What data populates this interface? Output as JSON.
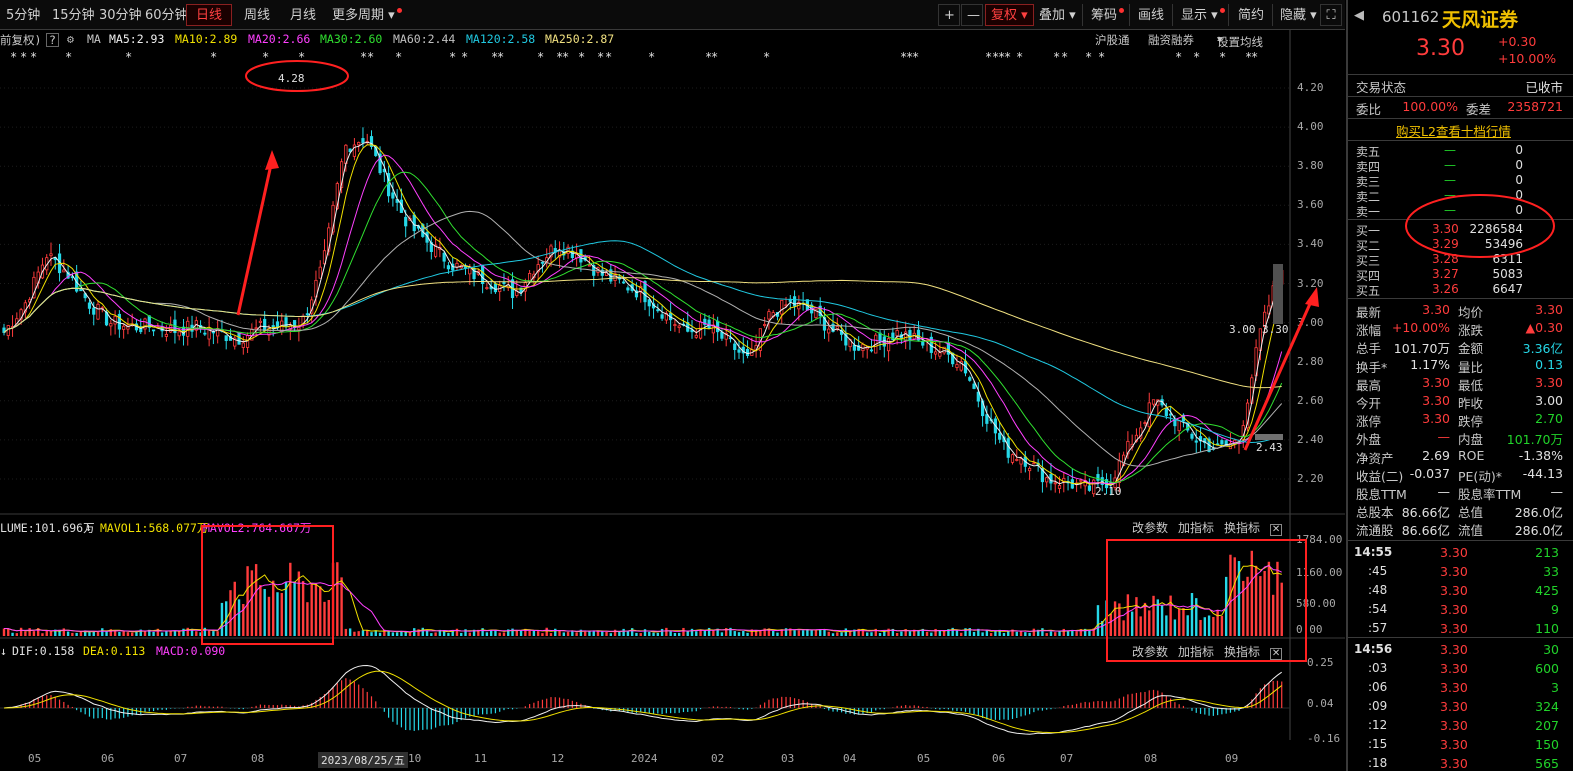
{
  "toolbar": {
    "left": [
      "5分钟",
      "15分钟",
      "30分钟",
      "60分钟",
      "日线",
      "周线",
      "月线",
      "更多周期"
    ],
    "selected": "日线",
    "right": [
      "+",
      "—",
      "复权",
      "叠加",
      "筹码",
      "画线",
      "显示",
      "简约",
      "隐藏",
      "⛶"
    ]
  },
  "ma": {
    "prefix": "前复权)",
    "ma_label": "MA",
    "ma5": "MA5:2.93",
    "ma10": "MA10:2.89",
    "ma20": "MA20:2.66",
    "ma30": "MA30:2.60",
    "ma60": "MA60:2.44",
    "ma120": "MA120:2.58",
    "ma250": "MA250:2.87",
    "links": [
      "沪股通",
      "融资融券",
      "设置均线"
    ]
  },
  "price_axis": [
    "4.20",
    "4.00",
    "3.80",
    "3.60",
    "3.40",
    "3.20",
    "3.00",
    "2.80",
    "2.60",
    "2.40",
    "2.20"
  ],
  "annotations": {
    "high": "4.28",
    "low": "2.10",
    "right_top": "3.00",
    "right_top2": "3.30",
    "right_low": "2.43"
  },
  "volume": {
    "title": "LUME:101.696万",
    "mavol1": "MAVOL1:568.077万",
    "mavol2": "MAVOL2:764.667万",
    "axis": [
      "1784.00",
      "1160.00",
      "580.00",
      "0.00"
    ],
    "btns": [
      "改参数",
      "加指标",
      "换指标"
    ]
  },
  "macd": {
    "dif": "DIF:0.158",
    "dea": "DEA:0.113",
    "macd": "MACD:0.090",
    "axis": [
      "0.25",
      "0.04",
      "-0.16"
    ],
    "btns": [
      "改参数",
      "加指标",
      "换指标"
    ]
  },
  "xaxis": [
    "05",
    "06",
    "07",
    "08",
    "2023/08/25/五",
    "10",
    "11",
    "12",
    "2024",
    "02",
    "03",
    "04",
    "05",
    "06",
    "07",
    "08",
    "09"
  ],
  "quote": {
    "code": "601162",
    "name": "天风证券",
    "price": "3.30",
    "change": "+0.30",
    "pct": "+10.00%",
    "status_label": "交易状态",
    "status": "已收市",
    "weibi_label": "委比",
    "weibi": "100.00%",
    "weicha_label": "委差",
    "weicha": "2358721",
    "l2": "购买L2查看十档行情"
  },
  "asks": [
    {
      "label": "卖五",
      "price": "—",
      "vol": "0"
    },
    {
      "label": "卖四",
      "price": "—",
      "vol": "0"
    },
    {
      "label": "卖三",
      "price": "—",
      "vol": "0"
    },
    {
      "label": "卖二",
      "price": "—",
      "vol": "0"
    },
    {
      "label": "卖一",
      "price": "—",
      "vol": "0"
    }
  ],
  "bids": [
    {
      "label": "买一",
      "price": "3.30",
      "vol": "2286584"
    },
    {
      "label": "买二",
      "price": "3.29",
      "vol": "53496"
    },
    {
      "label": "买三",
      "price": "3.28",
      "vol": "6311"
    },
    {
      "label": "买四",
      "price": "3.27",
      "vol": "5083"
    },
    {
      "label": "买五",
      "price": "3.26",
      "vol": "6647"
    }
  ],
  "stats": [
    {
      "l1": "最新",
      "v1": "3.30",
      "c1": "red",
      "l2": "均价",
      "v2": "3.30",
      "c2": "red"
    },
    {
      "l1": "涨幅",
      "v1": "+10.00%",
      "c1": "red",
      "l2": "涨跌",
      "v2": "▲0.30",
      "c2": "red"
    },
    {
      "l1": "总手",
      "v1": "101.70万",
      "c1": "wht",
      "l2": "金额",
      "v2": "3.36亿",
      "c2": "cy"
    },
    {
      "l1": "换手*",
      "v1": "1.17%",
      "c1": "wht",
      "l2": "量比",
      "v2": "0.13",
      "c2": "cy"
    },
    {
      "l1": "最高",
      "v1": "3.30",
      "c1": "red",
      "l2": "最低",
      "v2": "3.30",
      "c2": "red"
    },
    {
      "l1": "今开",
      "v1": "3.30",
      "c1": "red",
      "l2": "昨收",
      "v2": "3.00",
      "c2": "wht"
    },
    {
      "l1": "涨停",
      "v1": "3.30",
      "c1": "red",
      "l2": "跌停",
      "v2": "2.70",
      "c2": "grn"
    },
    {
      "l1": "外盘",
      "v1": "—",
      "c1": "red",
      "l2": "内盘",
      "v2": "101.70万",
      "c2": "grn"
    },
    {
      "l1": "净资产",
      "v1": "2.69",
      "c1": "wht",
      "l2": "ROE",
      "v2": "-1.38%",
      "c2": "wht"
    },
    {
      "l1": "收益(二)",
      "v1": "-0.037",
      "c1": "wht",
      "l2": "PE(动)*",
      "v2": "-44.13",
      "c2": "wht"
    },
    {
      "l1": "股息TTM",
      "v1": "—",
      "c1": "wht",
      "l2": "股息率TTM",
      "v2": "—",
      "c2": "wht"
    },
    {
      "l1": "总股本",
      "v1": "86.66亿",
      "c1": "wht",
      "l2": "总值",
      "v2": "286.0亿",
      "c2": "wht"
    },
    {
      "l1": "流通股",
      "v1": "86.66亿",
      "c1": "wht",
      "l2": "流值",
      "v2": "286.0亿",
      "c2": "wht"
    }
  ],
  "ticks": [
    {
      "t": "14:55",
      "p": "3.30",
      "v": "213",
      "vc": "grn"
    },
    {
      "t": ":45",
      "p": "3.30",
      "v": "33",
      "vc": "grn"
    },
    {
      "t": ":48",
      "p": "3.30",
      "v": "425",
      "vc": "grn"
    },
    {
      "t": ":54",
      "p": "3.30",
      "v": "9",
      "vc": "grn"
    },
    {
      "t": ":57",
      "p": "3.30",
      "v": "110",
      "vc": "grn"
    },
    {
      "t": "14:56",
      "p": "3.30",
      "v": "30",
      "vc": "grn"
    },
    {
      "t": ":03",
      "p": "3.30",
      "v": "600",
      "vc": "grn"
    },
    {
      "t": ":06",
      "p": "3.30",
      "v": "3",
      "vc": "grn"
    },
    {
      "t": ":09",
      "p": "3.30",
      "v": "324",
      "vc": "grn"
    },
    {
      "t": ":12",
      "p": "3.30",
      "v": "207",
      "vc": "grn"
    },
    {
      "t": ":15",
      "p": "3.30",
      "v": "150",
      "vc": "grn"
    },
    {
      "t": ":18",
      "p": "3.30",
      "v": "565",
      "vc": "grn"
    }
  ],
  "colors": {
    "up": "#ff3c3c",
    "down": "#26d8e8",
    "ma5": "#f0f0f0",
    "ma10": "#f0e000",
    "ma20": "#ff40ff",
    "ma30": "#30e030",
    "ma60": "#b0b0b0",
    "ma120": "#20c8e0",
    "ma250": "#f0e080"
  },
  "chart_data": {
    "type": "candlestick",
    "ylim": [
      2.1,
      4.28
    ],
    "close": [
      2.95,
      3.1,
      3.35,
      3.25,
      3.1,
      3.0,
      2.98,
      2.98,
      2.96,
      2.98,
      2.95,
      2.92,
      2.97,
      2.98,
      3.0,
      3.3,
      3.9,
      3.95,
      3.7,
      3.5,
      3.4,
      3.3,
      3.25,
      3.2,
      3.15,
      3.3,
      3.4,
      3.35,
      3.25,
      3.2,
      3.15,
      3.05,
      2.95,
      2.98,
      2.9,
      2.8,
      3.05,
      3.1,
      3.05,
      2.95,
      2.88,
      2.9,
      2.95,
      2.9,
      2.85,
      2.8,
      2.55,
      2.35,
      2.3,
      2.2,
      2.18,
      2.15,
      2.2,
      2.4,
      2.6,
      2.5,
      2.4,
      2.35,
      2.4,
      2.95,
      3.3
    ]
  }
}
